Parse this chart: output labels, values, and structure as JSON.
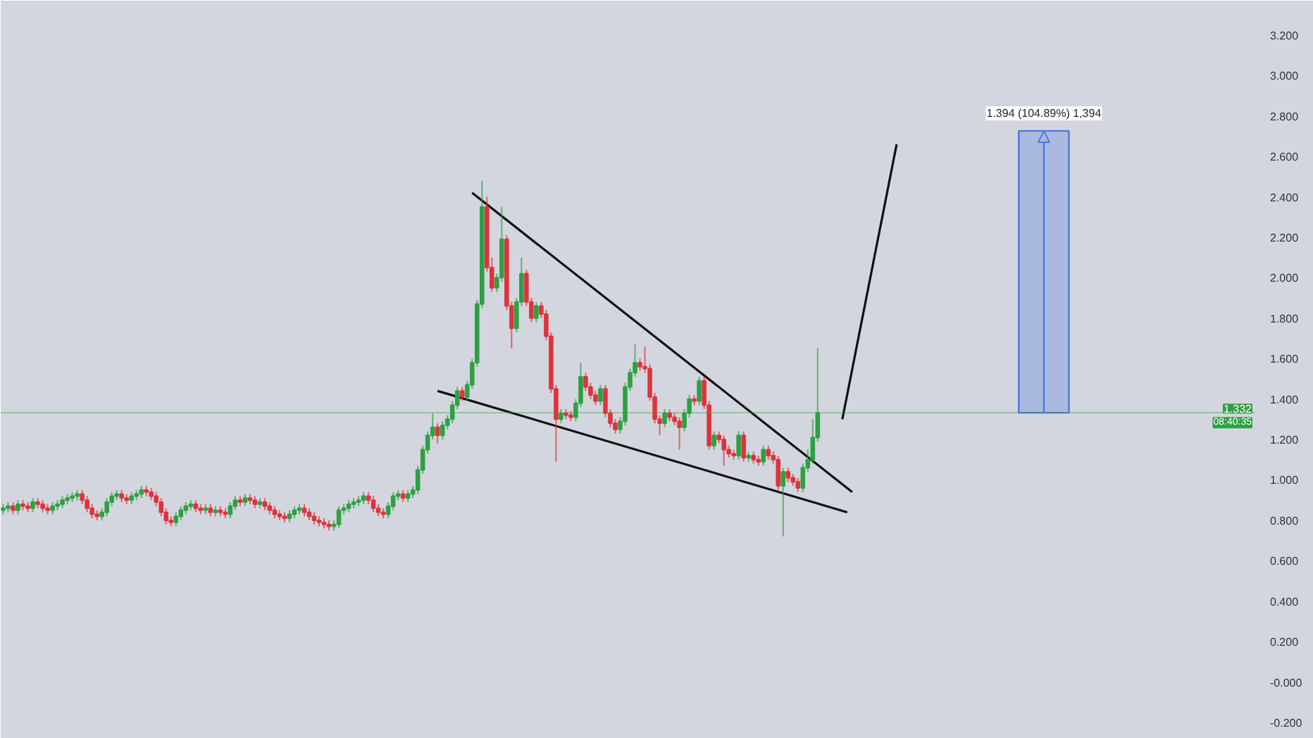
{
  "chart_data": {
    "type": "candlestick",
    "categories": [
      null,
      null,
      null,
      null,
      null,
      null,
      null,
      null,
      null,
      null,
      null,
      null,
      null,
      null,
      null,
      null,
      null,
      null,
      null,
      null,
      null,
      null,
      null,
      null,
      null,
      null,
      null,
      null,
      null,
      null,
      null,
      null,
      null,
      null,
      null,
      null,
      null,
      null,
      null,
      null,
      null,
      null,
      null,
      null,
      null,
      null,
      null,
      null,
      null,
      null,
      null,
      null,
      null,
      null,
      null,
      null,
      null,
      null,
      null,
      null,
      null,
      null,
      null,
      null,
      null,
      null,
      null,
      null,
      null,
      null,
      null,
      null,
      null,
      null,
      null,
      null,
      null,
      null,
      null,
      null,
      null,
      null,
      null,
      null,
      null,
      null,
      null,
      null,
      null,
      null,
      null,
      null,
      null,
      null,
      null,
      null,
      null,
      null,
      null,
      null,
      null,
      null,
      null,
      null,
      null,
      null,
      null,
      null,
      null,
      null,
      null,
      null,
      null,
      null,
      null,
      null,
      null,
      null,
      null,
      null,
      null,
      null,
      null,
      null,
      null,
      null,
      null,
      null,
      null,
      null,
      null,
      null,
      null,
      null,
      null,
      null,
      null,
      null,
      null,
      null,
      null,
      null,
      null,
      null,
      null,
      null,
      null,
      null,
      null,
      null,
      null,
      null,
      null,
      null,
      null,
      null,
      null,
      null,
      null,
      null,
      null,
      null,
      null,
      null,
      null,
      null,
      null,
      null,
      null,
      null,
      null,
      null,
      null,
      null,
      null,
      null,
      null,
      null,
      null,
      null,
      null,
      null,
      null,
      null,
      null,
      null,
      null,
      null,
      null,
      null,
      null,
      null,
      null,
      null,
      null,
      null,
      null,
      null,
      null,
      null,
      null,
      null,
      null,
      null,
      null,
      null,
      null,
      null,
      null,
      null,
      null,
      null,
      null,
      null,
      null,
      null,
      null,
      null,
      null,
      null,
      null,
      null,
      null,
      null,
      null,
      null,
      null,
      null,
      null,
      null,
      null,
      null,
      null,
      null,
      null,
      null,
      null,
      null,
      null,
      null,
      null,
      null,
      null,
      null,
      null,
      null,
      null,
      null,
      null,
      null,
      null,
      null,
      null,
      null
    ],
    "ohlc": [
      [
        0.85,
        0.88,
        0.83,
        0.86
      ],
      [
        0.86,
        0.89,
        0.84,
        0.87
      ],
      [
        0.87,
        0.89,
        0.83,
        0.85
      ],
      [
        0.85,
        0.9,
        0.83,
        0.88
      ],
      [
        0.88,
        0.9,
        0.85,
        0.87
      ],
      [
        0.87,
        0.89,
        0.84,
        0.86
      ],
      [
        0.86,
        0.91,
        0.84,
        0.89
      ],
      [
        0.89,
        0.91,
        0.86,
        0.88
      ],
      [
        0.88,
        0.9,
        0.84,
        0.86
      ],
      [
        0.86,
        0.88,
        0.83,
        0.85
      ],
      [
        0.85,
        0.89,
        0.83,
        0.87
      ],
      [
        0.87,
        0.9,
        0.85,
        0.88
      ],
      [
        0.88,
        0.92,
        0.86,
        0.9
      ],
      [
        0.9,
        0.93,
        0.88,
        0.91
      ],
      [
        0.91,
        0.94,
        0.89,
        0.92
      ],
      [
        0.92,
        0.95,
        0.9,
        0.93
      ],
      [
        0.93,
        0.95,
        0.88,
        0.9
      ],
      [
        0.9,
        0.92,
        0.84,
        0.86
      ],
      [
        0.86,
        0.88,
        0.81,
        0.83
      ],
      [
        0.83,
        0.85,
        0.8,
        0.82
      ],
      [
        0.82,
        0.86,
        0.8,
        0.84
      ],
      [
        0.84,
        0.91,
        0.82,
        0.89
      ],
      [
        0.89,
        0.94,
        0.87,
        0.92
      ],
      [
        0.92,
        0.95,
        0.9,
        0.93
      ],
      [
        0.93,
        0.95,
        0.89,
        0.91
      ],
      [
        0.91,
        0.93,
        0.88,
        0.9
      ],
      [
        0.9,
        0.94,
        0.88,
        0.92
      ],
      [
        0.92,
        0.95,
        0.9,
        0.93
      ],
      [
        0.93,
        0.97,
        0.91,
        0.95
      ],
      [
        0.95,
        0.97,
        0.92,
        0.94
      ],
      [
        0.94,
        0.96,
        0.9,
        0.92
      ],
      [
        0.92,
        0.94,
        0.87,
        0.89
      ],
      [
        0.89,
        0.91,
        0.82,
        0.84
      ],
      [
        0.84,
        0.86,
        0.78,
        0.8
      ],
      [
        0.8,
        0.82,
        0.77,
        0.79
      ],
      [
        0.79,
        0.84,
        0.77,
        0.82
      ],
      [
        0.82,
        0.87,
        0.8,
        0.85
      ],
      [
        0.85,
        0.89,
        0.83,
        0.87
      ],
      [
        0.87,
        0.9,
        0.85,
        0.88
      ],
      [
        0.88,
        0.9,
        0.84,
        0.86
      ],
      [
        0.86,
        0.88,
        0.83,
        0.85
      ],
      [
        0.85,
        0.88,
        0.83,
        0.86
      ],
      [
        0.86,
        0.88,
        0.82,
        0.84
      ],
      [
        0.84,
        0.87,
        0.82,
        0.85
      ],
      [
        0.85,
        0.87,
        0.82,
        0.84
      ],
      [
        0.84,
        0.86,
        0.81,
        0.83
      ],
      [
        0.83,
        0.89,
        0.81,
        0.87
      ],
      [
        0.87,
        0.92,
        0.85,
        0.9
      ],
      [
        0.9,
        0.92,
        0.87,
        0.89
      ],
      [
        0.89,
        0.93,
        0.87,
        0.91
      ],
      [
        0.91,
        0.93,
        0.88,
        0.9
      ],
      [
        0.9,
        0.92,
        0.86,
        0.88
      ],
      [
        0.88,
        0.91,
        0.86,
        0.89
      ],
      [
        0.89,
        0.91,
        0.85,
        0.87
      ],
      [
        0.87,
        0.89,
        0.83,
        0.85
      ],
      [
        0.85,
        0.87,
        0.81,
        0.83
      ],
      [
        0.83,
        0.85,
        0.8,
        0.82
      ],
      [
        0.82,
        0.84,
        0.79,
        0.81
      ],
      [
        0.81,
        0.85,
        0.79,
        0.83
      ],
      [
        0.83,
        0.87,
        0.81,
        0.85
      ],
      [
        0.85,
        0.88,
        0.83,
        0.86
      ],
      [
        0.86,
        0.88,
        0.82,
        0.84
      ],
      [
        0.84,
        0.86,
        0.8,
        0.82
      ],
      [
        0.82,
        0.84,
        0.78,
        0.8
      ],
      [
        0.8,
        0.82,
        0.77,
        0.79
      ],
      [
        0.79,
        0.81,
        0.76,
        0.78
      ],
      [
        0.78,
        0.8,
        0.75,
        0.77
      ],
      [
        0.77,
        0.8,
        0.75,
        0.78
      ],
      [
        0.78,
        0.87,
        0.76,
        0.85
      ],
      [
        0.85,
        0.88,
        0.83,
        0.86
      ],
      [
        0.86,
        0.9,
        0.84,
        0.88
      ],
      [
        0.88,
        0.91,
        0.86,
        0.89
      ],
      [
        0.89,
        0.92,
        0.87,
        0.9
      ],
      [
        0.9,
        0.94,
        0.88,
        0.92
      ],
      [
        0.92,
        0.94,
        0.88,
        0.9
      ],
      [
        0.9,
        0.92,
        0.84,
        0.86
      ],
      [
        0.86,
        0.88,
        0.82,
        0.84
      ],
      [
        0.84,
        0.86,
        0.81,
        0.83
      ],
      [
        0.83,
        0.89,
        0.81,
        0.87
      ],
      [
        0.87,
        0.94,
        0.85,
        0.92
      ],
      [
        0.92,
        0.95,
        0.9,
        0.93
      ],
      [
        0.93,
        0.95,
        0.89,
        0.91
      ],
      [
        0.91,
        0.95,
        0.89,
        0.93
      ],
      [
        0.93,
        0.97,
        0.91,
        0.95
      ],
      [
        0.95,
        1.07,
        0.93,
        1.05
      ],
      [
        1.05,
        1.17,
        1.03,
        1.15
      ],
      [
        1.15,
        1.24,
        1.13,
        1.22
      ],
      [
        1.22,
        1.33,
        1.2,
        1.26
      ],
      [
        1.26,
        1.28,
        1.18,
        1.22
      ],
      [
        1.22,
        1.29,
        1.2,
        1.27
      ],
      [
        1.27,
        1.32,
        1.25,
        1.3
      ],
      [
        1.3,
        1.39,
        1.28,
        1.37
      ],
      [
        1.37,
        1.46,
        1.35,
        1.44
      ],
      [
        1.44,
        1.46,
        1.39,
        1.41
      ],
      [
        1.41,
        1.49,
        1.39,
        1.47
      ],
      [
        1.47,
        1.6,
        1.45,
        1.58
      ],
      [
        1.58,
        1.89,
        1.56,
        1.87
      ],
      [
        1.87,
        2.48,
        1.85,
        2.35
      ],
      [
        2.35,
        2.4,
        2.03,
        2.05
      ],
      [
        2.05,
        2.1,
        1.93,
        1.95
      ],
      [
        1.95,
        2.02,
        1.93,
        2.0
      ],
      [
        2.0,
        2.35,
        1.98,
        2.19
      ],
      [
        2.19,
        2.21,
        1.84,
        1.86
      ],
      [
        1.86,
        1.88,
        1.65,
        1.75
      ],
      [
        1.75,
        1.9,
        1.73,
        1.88
      ],
      [
        1.88,
        2.1,
        1.86,
        2.02
      ],
      [
        2.02,
        2.04,
        1.86,
        1.88
      ],
      [
        1.88,
        1.9,
        1.78,
        1.8
      ],
      [
        1.8,
        1.88,
        1.78,
        1.86
      ],
      [
        1.86,
        1.88,
        1.8,
        1.82
      ],
      [
        1.82,
        1.84,
        1.69,
        1.71
      ],
      [
        1.71,
        1.73,
        1.43,
        1.45
      ],
      [
        1.45,
        1.47,
        1.09,
        1.3
      ],
      [
        1.3,
        1.35,
        1.28,
        1.33
      ],
      [
        1.33,
        1.35,
        1.3,
        1.32
      ],
      [
        1.32,
        1.34,
        1.29,
        1.31
      ],
      [
        1.31,
        1.4,
        1.29,
        1.38
      ],
      [
        1.38,
        1.58,
        1.36,
        1.51
      ],
      [
        1.51,
        1.53,
        1.44,
        1.46
      ],
      [
        1.46,
        1.48,
        1.4,
        1.42
      ],
      [
        1.42,
        1.44,
        1.37,
        1.39
      ],
      [
        1.39,
        1.47,
        1.37,
        1.45
      ],
      [
        1.45,
        1.47,
        1.31,
        1.33
      ],
      [
        1.33,
        1.35,
        1.26,
        1.28
      ],
      [
        1.28,
        1.3,
        1.23,
        1.25
      ],
      [
        1.25,
        1.31,
        1.23,
        1.29
      ],
      [
        1.29,
        1.48,
        1.27,
        1.46
      ],
      [
        1.46,
        1.55,
        1.44,
        1.53
      ],
      [
        1.53,
        1.67,
        1.51,
        1.58
      ],
      [
        1.58,
        1.6,
        1.54,
        1.56
      ],
      [
        1.56,
        1.66,
        1.53,
        1.55
      ],
      [
        1.55,
        1.57,
        1.39,
        1.41
      ],
      [
        1.41,
        1.43,
        1.28,
        1.3
      ],
      [
        1.3,
        1.32,
        1.22,
        1.28
      ],
      [
        1.28,
        1.35,
        1.26,
        1.33
      ],
      [
        1.33,
        1.35,
        1.29,
        1.31
      ],
      [
        1.31,
        1.33,
        1.27,
        1.29
      ],
      [
        1.29,
        1.31,
        1.15,
        1.26
      ],
      [
        1.26,
        1.35,
        1.24,
        1.33
      ],
      [
        1.33,
        1.42,
        1.31,
        1.4
      ],
      [
        1.4,
        1.42,
        1.37,
        1.39
      ],
      [
        1.39,
        1.51,
        1.37,
        1.49
      ],
      [
        1.49,
        1.51,
        1.35,
        1.37
      ],
      [
        1.37,
        1.39,
        1.15,
        1.17
      ],
      [
        1.17,
        1.24,
        1.15,
        1.22
      ],
      [
        1.22,
        1.24,
        1.18,
        1.2
      ],
      [
        1.2,
        1.22,
        1.07,
        1.15
      ],
      [
        1.15,
        1.17,
        1.11,
        1.13
      ],
      [
        1.13,
        1.15,
        1.1,
        1.12
      ],
      [
        1.12,
        1.24,
        1.1,
        1.22
      ],
      [
        1.22,
        1.24,
        1.09,
        1.11
      ],
      [
        1.11,
        1.14,
        1.09,
        1.12
      ],
      [
        1.12,
        1.14,
        1.08,
        1.1
      ],
      [
        1.1,
        1.12,
        1.07,
        1.09
      ],
      [
        1.09,
        1.17,
        1.07,
        1.15
      ],
      [
        1.15,
        1.17,
        1.1,
        1.12
      ],
      [
        1.12,
        1.14,
        1.08,
        1.1
      ],
      [
        1.1,
        1.12,
        0.95,
        0.97
      ],
      [
        0.97,
        1.06,
        0.72,
        1.04
      ],
      [
        1.04,
        1.06,
        0.99,
        1.01
      ],
      [
        1.01,
        1.03,
        0.97,
        0.99
      ],
      [
        0.99,
        1.01,
        0.94,
        0.96
      ],
      [
        0.96,
        1.08,
        0.94,
        1.06
      ],
      [
        1.06,
        1.15,
        1.04,
        1.1
      ],
      [
        1.1,
        1.3,
        1.08,
        1.21
      ],
      [
        1.21,
        1.65,
        1.19,
        1.332
      ],
      null,
      null,
      null,
      null,
      null,
      null,
      null,
      null,
      null,
      null,
      null,
      null,
      null,
      null,
      null,
      null,
      null,
      null,
      null,
      null,
      null,
      null,
      null,
      null,
      null,
      null,
      null,
      null,
      null,
      null,
      null,
      null,
      null,
      null,
      null,
      null,
      null,
      null,
      null,
      null,
      null,
      null,
      null,
      null,
      null,
      null,
      null,
      null,
      null,
      null,
      null,
      null,
      null,
      null,
      null,
      null,
      null,
      null,
      null,
      null,
      null,
      null,
      null,
      null,
      null,
      null,
      null,
      null,
      null,
      null,
      null,
      null,
      null,
      null,
      null,
      null,
      null,
      null,
      null,
      null,
      null,
      null,
      null,
      null,
      null,
      null,
      null,
      null
    ],
    "colors": [
      "#2ea043",
      "#2ea043",
      "#e0323c",
      "#2ea043",
      "#e0323c",
      "#e0323c",
      "#2ea043",
      "#e0323c",
      "#e0323c",
      "#e0323c",
      "#2ea043",
      "#2ea043",
      "#2ea043",
      "#2ea043",
      "#2ea043",
      "#2ea043",
      "#e0323c",
      "#e0323c",
      "#e0323c",
      "#e0323c",
      "#2ea043",
      "#2ea043",
      "#2ea043",
      "#2ea043",
      "#e0323c",
      "#e0323c",
      "#2ea043",
      "#2ea043",
      "#2ea043",
      "#e0323c",
      "#e0323c",
      "#e0323c",
      "#e0323c",
      "#e0323c",
      "#e0323c",
      "#2ea043",
      "#2ea043",
      "#2ea043",
      "#2ea043",
      "#e0323c",
      "#e0323c",
      "#2ea043",
      "#e0323c",
      "#2ea043",
      "#e0323c",
      "#e0323c",
      "#2ea043",
      "#2ea043",
      "#e0323c",
      "#2ea043",
      "#e0323c",
      "#e0323c",
      "#2ea043",
      "#e0323c",
      "#e0323c",
      "#e0323c",
      "#e0323c",
      "#e0323c",
      "#2ea043",
      "#2ea043",
      "#2ea043",
      "#e0323c",
      "#e0323c",
      "#e0323c",
      "#e0323c",
      "#e0323c",
      "#e0323c",
      "#2ea043",
      "#2ea043",
      "#2ea043",
      "#2ea043",
      "#2ea043",
      "#2ea043",
      "#2ea043",
      "#e0323c",
      "#e0323c",
      "#e0323c",
      "#e0323c",
      "#2ea043",
      "#2ea043",
      "#2ea043",
      "#e0323c",
      "#2ea043",
      "#2ea043",
      "#2ea043",
      "#2ea043",
      "#2ea043",
      "#2ea043",
      "#e0323c",
      "#2ea043",
      "#2ea043",
      "#2ea043",
      "#2ea043",
      "#e0323c",
      "#2ea043",
      "#2ea043",
      "#2ea043",
      "#2ea043",
      "#e0323c",
      "#e0323c",
      "#2ea043",
      "#2ea043",
      "#e0323c",
      "#e0323c",
      "#2ea043",
      "#2ea043",
      "#e0323c",
      "#e0323c",
      "#2ea043",
      "#e0323c",
      "#e0323c",
      "#e0323c",
      "#e0323c",
      "#2ea043",
      "#e0323c",
      "#e0323c",
      "#2ea043",
      "#2ea043",
      "#e0323c",
      "#e0323c",
      "#e0323c",
      "#2ea043",
      "#e0323c",
      "#e0323c",
      "#e0323c",
      "#2ea043",
      "#2ea043",
      "#2ea043",
      "#2ea043",
      "#e0323c",
      "#e0323c",
      "#e0323c",
      "#e0323c",
      "#e0323c",
      "#2ea043",
      "#e0323c",
      "#e0323c",
      "#e0323c",
      "#2ea043",
      "#2ea043",
      "#e0323c",
      "#2ea043",
      "#e0323c",
      "#e0323c",
      "#2ea043",
      "#e0323c",
      "#e0323c",
      "#e0323c",
      "#e0323c",
      "#2ea043",
      "#e0323c",
      "#2ea043",
      "#e0323c",
      "#e0323c",
      "#2ea043",
      "#e0323c",
      "#e0323c",
      "#e0323c",
      "#2ea043",
      "#e0323c",
      "#e0323c",
      "#e0323c",
      "#2ea043",
      "#2ea043",
      "#2ea043",
      "#2ea043",
      null,
      null,
      null,
      null,
      null,
      null,
      null,
      null,
      null,
      null,
      null,
      null,
      null,
      null,
      null,
      null,
      null,
      null,
      null,
      null,
      null,
      null,
      null,
      null,
      null,
      null,
      null,
      null,
      null,
      null,
      null,
      null,
      null,
      null,
      null,
      null,
      null,
      null,
      null,
      null,
      null,
      null,
      null,
      null,
      null,
      null,
      null,
      null,
      null,
      null,
      null,
      null,
      null,
      null,
      null,
      null,
      null,
      null,
      null,
      null,
      null,
      null,
      null,
      null,
      null,
      null,
      null,
      null,
      null,
      null,
      null,
      null,
      null,
      null,
      null,
      null,
      null,
      null,
      null,
      null,
      null,
      null,
      null,
      null,
      null,
      null,
      null,
      null
    ],
    "series": [
      {
        "type": "line",
        "color": "#111111",
        "values": [
          null,
          null,
          null,
          null,
          null,
          null,
          null,
          null,
          null,
          null,
          null,
          null,
          null,
          null,
          null,
          null,
          null,
          null,
          null,
          null,
          null,
          null,
          null,
          null,
          null,
          null,
          null,
          null,
          null,
          null,
          null,
          null,
          null,
          null,
          null,
          null,
          null,
          null,
          null,
          null,
          null,
          null,
          null,
          null,
          null,
          null,
          null,
          null,
          null,
          null,
          null,
          null,
          null,
          null,
          null,
          null,
          null,
          null,
          null,
          null,
          null,
          null,
          null,
          null,
          null,
          null,
          null,
          null,
          null,
          null,
          null,
          null,
          null,
          null,
          null,
          null,
          null,
          null,
          null,
          null,
          null,
          null,
          null,
          null,
          null,
          null,
          null,
          null,
          null,
          null,
          null,
          null,
          null,
          null,
          null,
          2.42,
          null,
          null,
          null,
          null,
          null,
          null,
          null,
          null,
          null,
          null,
          null,
          null,
          null,
          null,
          null,
          null,
          null,
          null,
          null,
          null,
          null,
          null,
          null,
          null,
          null,
          null,
          null,
          null,
          null,
          null,
          null,
          null,
          null,
          null,
          null,
          null,
          null,
          null,
          null,
          null,
          null,
          null,
          null,
          null,
          null,
          null,
          null,
          null,
          null,
          null,
          null,
          null,
          null,
          null,
          null,
          null,
          null,
          null,
          null,
          null,
          null,
          null,
          null,
          null,
          null,
          null,
          null,
          null,
          null,
          null,
          null,
          null,
          null,
          null,
          null,
          null,
          0.94,
          null,
          null,
          null,
          null,
          null,
          null,
          null,
          null,
          null,
          null,
          null,
          null,
          null,
          null,
          null,
          null,
          null,
          null,
          null,
          null,
          null,
          null,
          null,
          null,
          null,
          null,
          null,
          null,
          null,
          null,
          null,
          null,
          null,
          null,
          null,
          null,
          null,
          null,
          null,
          null,
          null,
          null,
          null,
          null,
          null,
          null,
          null,
          null,
          null,
          null,
          null,
          null,
          null,
          null,
          null,
          null,
          null,
          null,
          null,
          null,
          null,
          null,
          null,
          null,
          null,
          null,
          null,
          null,
          null,
          null,
          null,
          null,
          null,
          null,
          null,
          null,
          null,
          null,
          null,
          null,
          null
        ]
      },
      {
        "type": "line",
        "color": "#111111",
        "values": [
          null,
          null,
          null,
          null,
          null,
          null,
          null,
          null,
          null,
          null,
          null,
          null,
          null,
          null,
          null,
          null,
          null,
          null,
          null,
          null,
          null,
          null,
          null,
          null,
          null,
          null,
          null,
          null,
          null,
          null,
          null,
          null,
          null,
          null,
          null,
          null,
          null,
          null,
          null,
          null,
          null,
          null,
          null,
          null,
          null,
          null,
          null,
          null,
          null,
          null,
          null,
          null,
          null,
          null,
          null,
          null,
          null,
          null,
          null,
          null,
          null,
          null,
          null,
          null,
          null,
          null,
          null,
          null,
          null,
          null,
          null,
          null,
          null,
          null,
          null,
          null,
          null,
          null,
          null,
          null,
          null,
          null,
          null,
          null,
          null,
          null,
          null,
          null,
          1.44,
          null,
          null,
          null,
          null,
          null,
          null,
          null,
          null,
          null,
          null,
          null,
          null,
          null,
          null,
          null,
          null,
          null,
          null,
          null,
          null,
          null,
          null,
          null,
          null,
          null,
          null,
          null,
          null,
          null,
          null,
          null,
          null,
          null,
          null,
          null,
          null,
          null,
          null,
          null,
          null,
          null,
          null,
          null,
          null,
          null,
          null,
          null,
          null,
          null,
          null,
          null,
          null,
          null,
          null,
          null,
          null,
          null,
          null,
          null,
          null,
          null,
          null,
          null,
          null,
          null,
          null,
          null,
          null,
          null,
          null,
          null,
          null,
          null,
          null,
          null,
          null,
          null,
          null,
          null,
          null,
          null,
          null,
          0.84,
          null,
          null,
          null,
          null,
          null,
          null,
          null,
          null,
          null,
          null,
          null,
          null,
          null,
          null,
          null,
          null,
          null,
          null,
          null,
          null,
          null,
          null,
          null,
          null,
          null,
          null,
          null,
          null,
          null,
          null,
          null,
          null,
          null,
          null,
          null,
          null,
          null,
          null,
          null,
          null,
          null,
          null,
          null,
          null,
          null,
          null,
          null,
          null,
          null,
          null,
          null,
          null,
          null,
          null,
          null,
          null,
          null,
          null,
          null,
          null,
          null,
          null,
          null,
          null,
          null,
          null,
          null,
          null,
          null,
          null,
          null,
          null,
          null,
          null,
          null,
          null,
          null,
          null,
          null,
          null,
          null,
          null
        ]
      },
      {
        "type": "line",
        "color": "#111111",
        "values": [
          null,
          null,
          null,
          null,
          null,
          null,
          null,
          null,
          null,
          null,
          null,
          null,
          null,
          null,
          null,
          null,
          null,
          null,
          null,
          null,
          null,
          null,
          null,
          null,
          null,
          null,
          null,
          null,
          null,
          null,
          null,
          null,
          null,
          null,
          null,
          null,
          null,
          null,
          null,
          null,
          null,
          null,
          null,
          null,
          null,
          null,
          null,
          null,
          null,
          null,
          null,
          null,
          null,
          null,
          null,
          null,
          null,
          null,
          null,
          null,
          null,
          null,
          null,
          null,
          null,
          null,
          null,
          null,
          null,
          null,
          null,
          null,
          null,
          null,
          null,
          null,
          null,
          null,
          null,
          null,
          null,
          null,
          null,
          null,
          null,
          null,
          null,
          null,
          null,
          null,
          null,
          null,
          null,
          null,
          null,
          null,
          null,
          null,
          null,
          null,
          null,
          null,
          null,
          null,
          null,
          null,
          null,
          null,
          null,
          null,
          null,
          null,
          null,
          null,
          null,
          null,
          null,
          null,
          null,
          null,
          null,
          null,
          null,
          null,
          null,
          null,
          null,
          null,
          null,
          null,
          null,
          null,
          null,
          null,
          null,
          null,
          null,
          null,
          null,
          null,
          null,
          null,
          null,
          null,
          null,
          null,
          null,
          null,
          null,
          null,
          null,
          null,
          null,
          null,
          null,
          null,
          null,
          null,
          null,
          null,
          null,
          null,
          null,
          null,
          null,
          null,
          null,
          null,
          null,
          null,
          1.3,
          null,
          null,
          null,
          null,
          null,
          null,
          null,
          null,
          null,
          null,
          2.66,
          null,
          null,
          null,
          null,
          null,
          null,
          null,
          null,
          null,
          null,
          null,
          null,
          null,
          null,
          null,
          null,
          null,
          null,
          null,
          null,
          null,
          null,
          null,
          null,
          null,
          null,
          null,
          null,
          null,
          null,
          null,
          null,
          null,
          null,
          null,
          null,
          null,
          null,
          null,
          null,
          null,
          null,
          null,
          null,
          null,
          null,
          null,
          null,
          null,
          null,
          null,
          null,
          null,
          null,
          null,
          null,
          null,
          null,
          null,
          null,
          null,
          null,
          null,
          null,
          null,
          null,
          null,
          null,
          null,
          null,
          null,
          null
        ]
      }
    ],
    "ref_lines": [
      {
        "axis": "y",
        "value": 1.332,
        "label": "1.332",
        "color": "#2ea043"
      }
    ],
    "bands": [
      {
        "axis": "y",
        "from": 1.332,
        "to": 2.726,
        "label": "1.394 (104.89%) 1,394",
        "color": "#4a78e0"
      }
    ],
    "annotations": [
      "08:40:35"
    ],
    "ylim": [
      -0.28,
      3.37
    ],
    "yticks": [
      {
        "value": -0.2,
        "label": "-0.200"
      },
      {
        "value": 0,
        "label": "-0.000"
      },
      {
        "value": 0.2,
        "label": "0.200"
      },
      {
        "value": 0.4,
        "label": "0.400"
      },
      {
        "value": 0.6,
        "label": "0.600"
      },
      {
        "value": 0.8,
        "label": "0.800"
      },
      {
        "value": 1.0,
        "label": "1.000"
      },
      {
        "value": 1.2,
        "label": "1.200"
      },
      {
        "value": 1.4,
        "label": "1.400"
      },
      {
        "value": 1.6,
        "label": "1.600"
      },
      {
        "value": 1.8,
        "label": "1.800"
      },
      {
        "value": 2.0,
        "label": "2.000"
      },
      {
        "value": 2.2,
        "label": "2.200"
      },
      {
        "value": 2.4,
        "label": "2.400"
      },
      {
        "value": 2.6,
        "label": "2.600"
      },
      {
        "value": 2.8,
        "label": "2.800"
      },
      {
        "value": 3.0,
        "label": "3.000"
      },
      {
        "value": 3.2,
        "label": "3.200"
      }
    ],
    "tick_labels": "y"
  }
}
